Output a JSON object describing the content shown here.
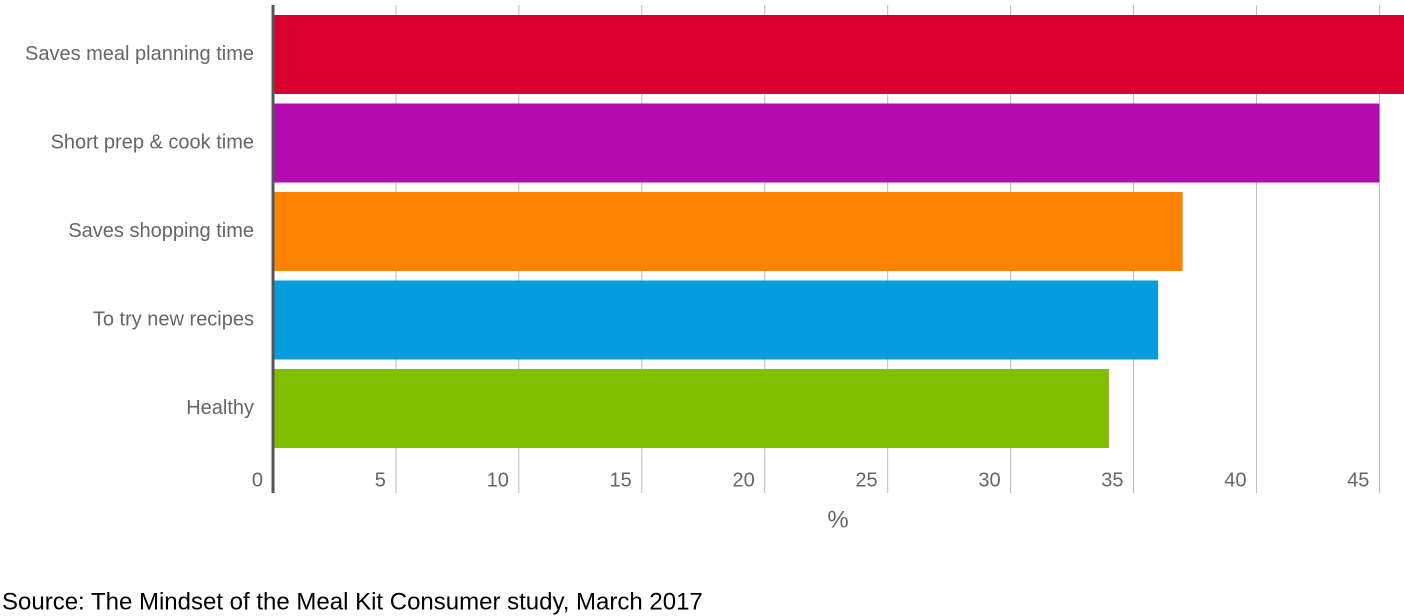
{
  "chart_data": {
    "type": "hbar",
    "categories": [
      "Saves meal planning time",
      "Short prep & cook time",
      "Saves shopping time",
      "To try new recipes",
      "Healthy"
    ],
    "values": [
      46,
      45,
      37,
      36,
      34
    ],
    "colors": [
      "#d9002f",
      "#b30bb0",
      "#ff8300",
      "#039cdd",
      "#80bf00"
    ],
    "xlabel": "%",
    "xlim": [
      0,
      46
    ],
    "xticks": [
      0,
      5,
      10,
      15,
      20,
      25,
      30,
      35,
      40,
      45
    ],
    "grid": true,
    "source": "Source: The Mindset of the Meal Kit Consumer study, March 2017"
  }
}
